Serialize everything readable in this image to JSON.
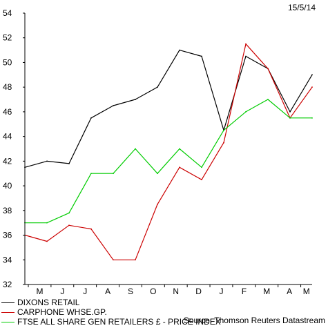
{
  "chart_data": {
    "type": "line",
    "date_label": "15/5/14",
    "source": "Source: Thomson Reuters Datastream",
    "ylim": [
      32,
      54
    ],
    "y_ticks": [
      32,
      34,
      36,
      38,
      40,
      42,
      44,
      46,
      48,
      50,
      52,
      54
    ],
    "x_ticks": [
      "M",
      "J",
      "J",
      "A",
      "S",
      "O",
      "N",
      "D",
      "J",
      "F",
      "M",
      "A",
      "M"
    ],
    "grid": false,
    "legend_position": "bottom-left",
    "x_index_note_dates": "monthly sample points (end of month)",
    "x": [
      "2013-05-15",
      "2013-06-01",
      "2013-07-01",
      "2013-08-01",
      "2013-09-01",
      "2013-10-01",
      "2013-11-01",
      "2013-12-01",
      "2014-01-01",
      "2014-02-01",
      "2014-03-01",
      "2014-04-01",
      "2014-05-01",
      "2014-05-15"
    ],
    "series": [
      {
        "name": "DIXONS RETAIL",
        "color": "#000000",
        "values": [
          41.5,
          42.0,
          41.8,
          45.5,
          46.5,
          47.0,
          48.0,
          51.0,
          50.5,
          44.5,
          50.5,
          49.5,
          46.0,
          49.0
        ]
      },
      {
        "name": "CARPHONE WHSE.GP.",
        "color": "#cc0000",
        "values": [
          36.0,
          35.5,
          36.8,
          36.5,
          34.0,
          34.0,
          38.5,
          41.5,
          40.5,
          43.5,
          51.5,
          49.5,
          45.5,
          48.0
        ]
      },
      {
        "name": "FTSE ALL SHARE GEN RETAILERS £ - PRICE INDEX",
        "color": "#00cc00",
        "values": [
          37.0,
          37.0,
          37.8,
          41.0,
          41.0,
          43.0,
          41.0,
          43.0,
          41.5,
          44.5,
          46.0,
          47.0,
          45.5,
          45.5
        ]
      }
    ]
  }
}
